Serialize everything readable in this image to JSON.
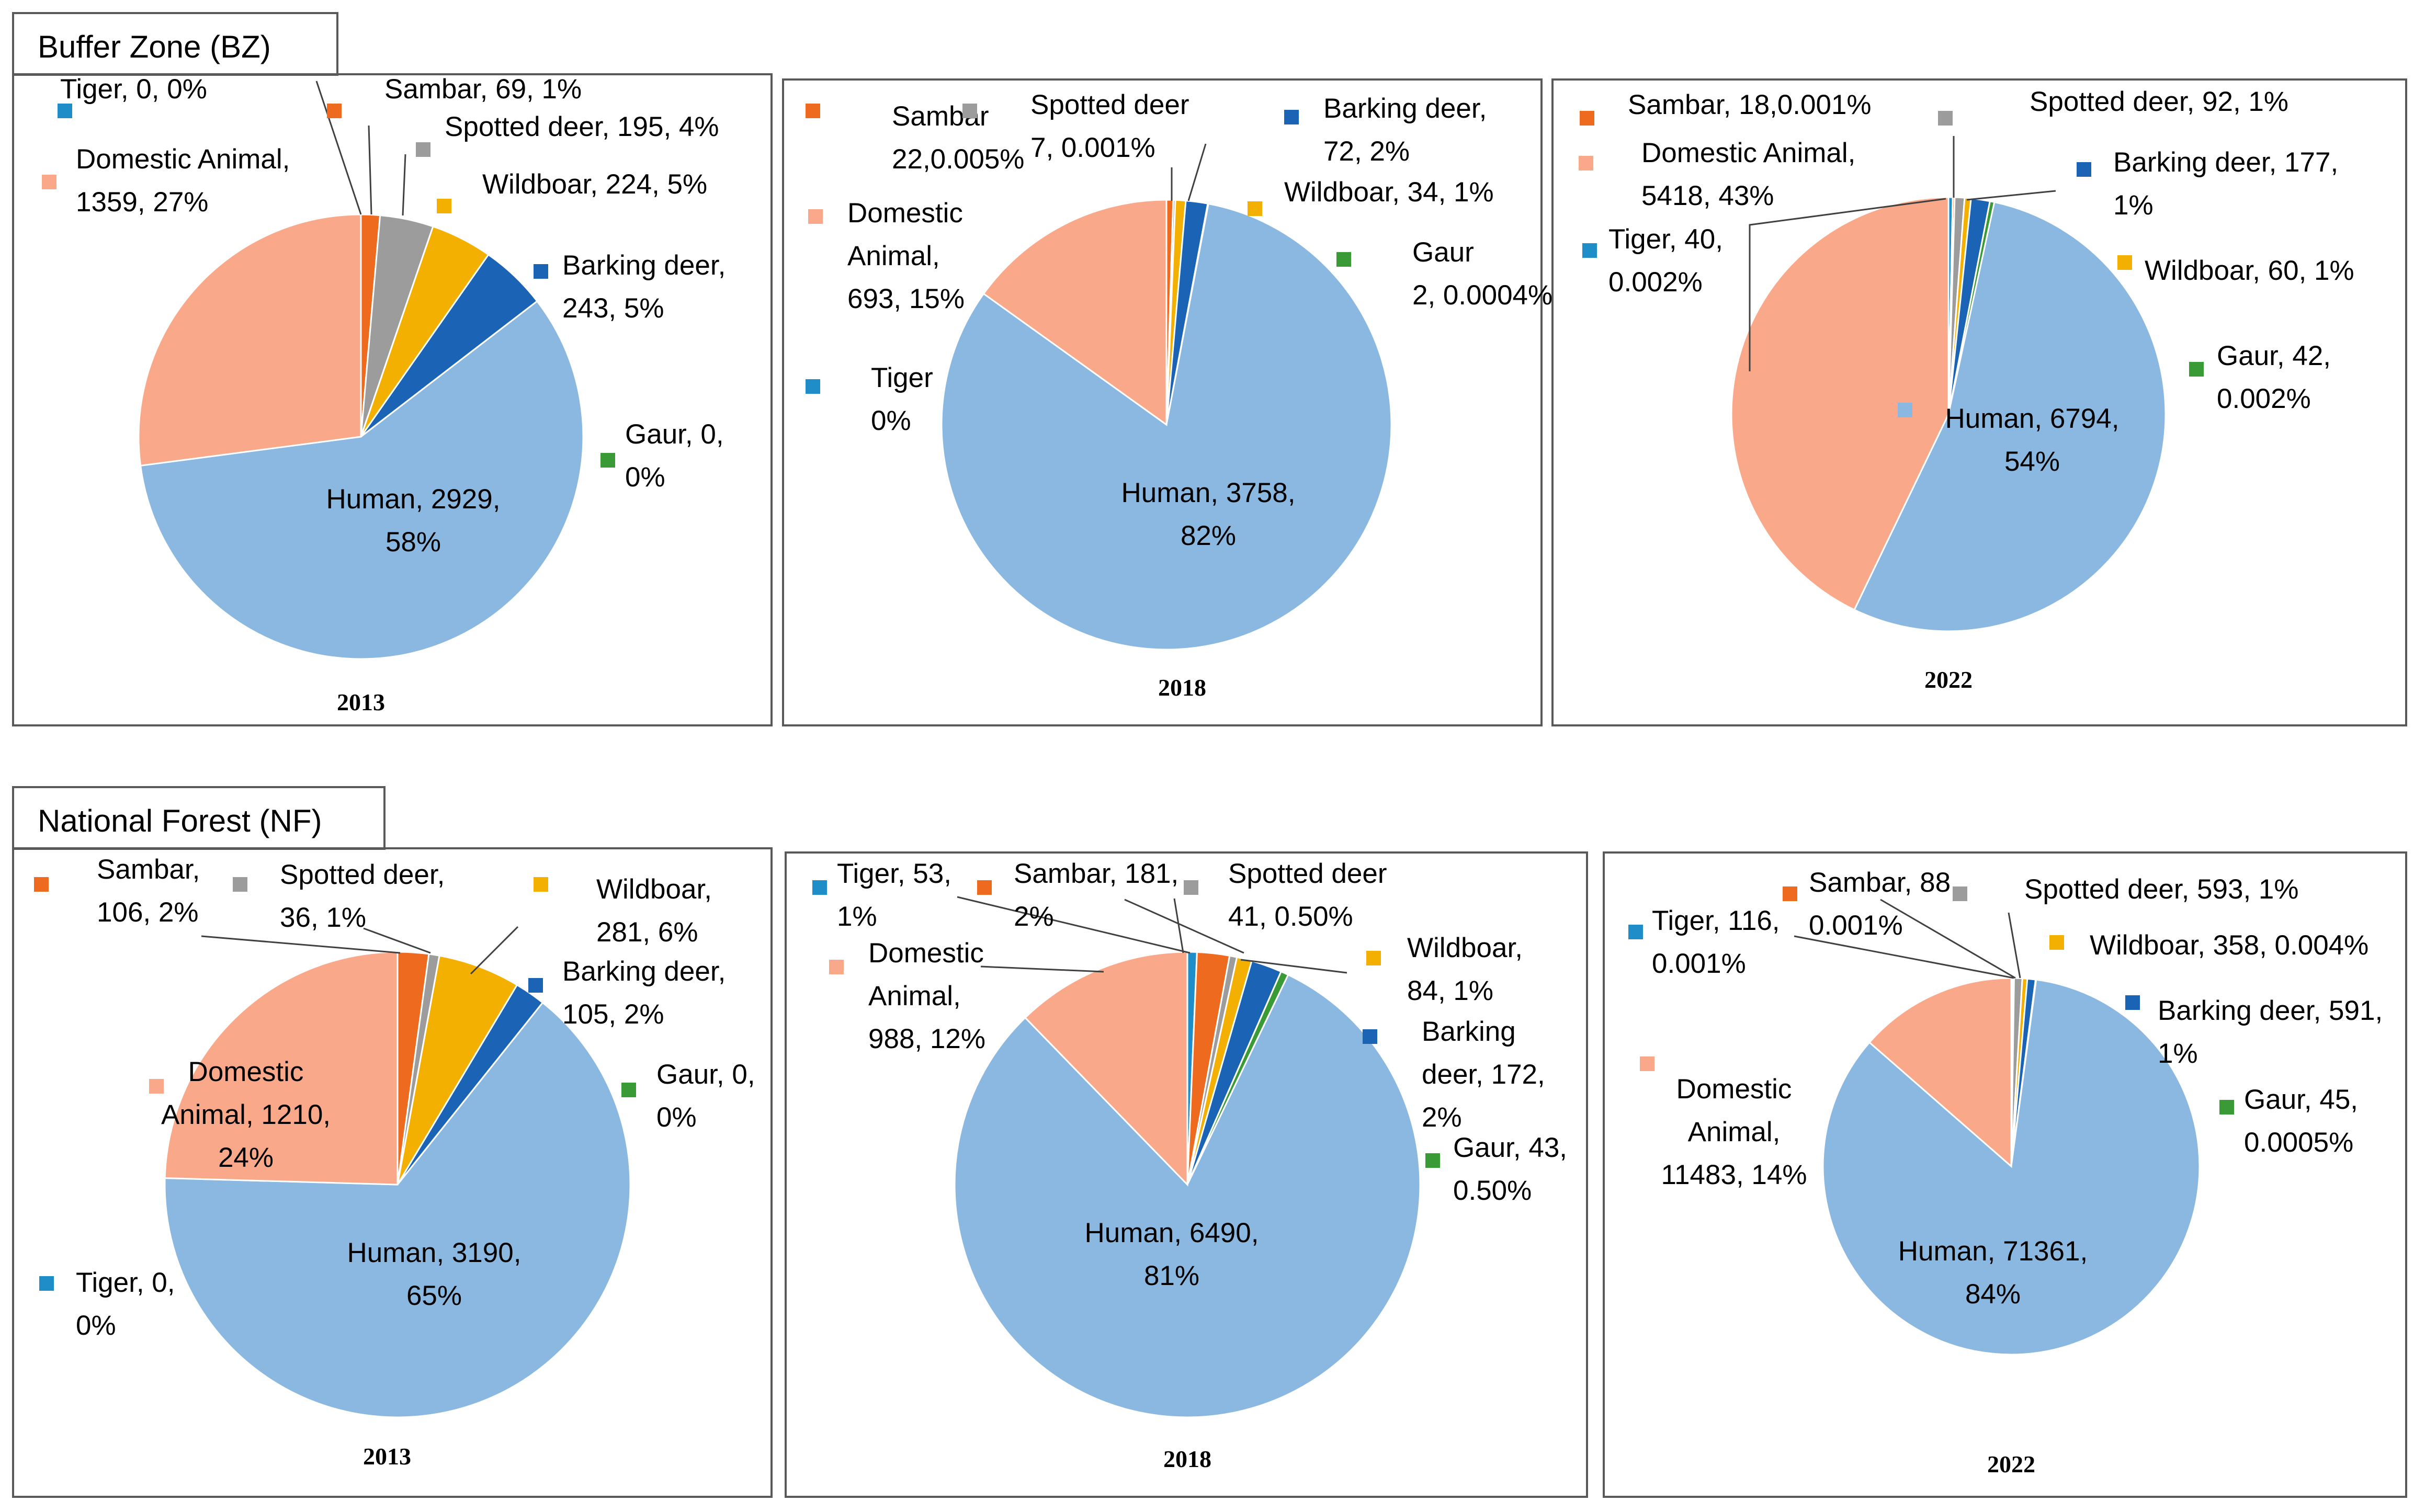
{
  "sections": [
    {
      "title": "Buffer Zone (BZ)"
    },
    {
      "title": "National Forest (NF)"
    }
  ],
  "colors": {
    "Tiger": "#1F8DC8",
    "Sambar": "#ED6A1E",
    "Spotted deer": "#9C9C9C",
    "Wildboar": "#F4B000",
    "Barking deer": "#1A63B5",
    "Gaur": "#3A9B36",
    "Human": "#8BB8E0",
    "Domestic Animal": "#F9A98A",
    "outline": "#FFFFFF",
    "leader": "#404040"
  },
  "chart_data": [
    {
      "type": "pie",
      "section": "Buffer Zone (BZ)",
      "year": "2013",
      "start_angle": 0,
      "slices": [
        {
          "name": "Tiger",
          "value": 0,
          "percent": "0%",
          "label": [
            "Tiger, 0, 0%"
          ]
        },
        {
          "name": "Sambar",
          "value": 69,
          "percent": "1%",
          "label": [
            "Sambar, 69, 1%"
          ]
        },
        {
          "name": "Spotted deer",
          "value": 195,
          "percent": "4%",
          "label": [
            "Spotted deer, 195, 4%"
          ]
        },
        {
          "name": "Wildboar",
          "value": 224,
          "percent": "5%",
          "label": [
            "Wildboar, 224, 5%"
          ]
        },
        {
          "name": "Barking deer",
          "value": 243,
          "percent": "5%",
          "label": [
            "Barking deer,",
            "243, 5%"
          ]
        },
        {
          "name": "Gaur",
          "value": 0,
          "percent": "0%",
          "label": [
            "Gaur, 0,",
            "0%"
          ]
        },
        {
          "name": "Human",
          "value": 2929,
          "percent": "58%",
          "label": [
            "Human, 2929,",
            "58%"
          ]
        },
        {
          "name": "Domestic Animal",
          "value": 1359,
          "percent": "27%",
          "label": [
            "Domestic Animal,",
            "1359, 27%"
          ]
        }
      ]
    },
    {
      "type": "pie",
      "section": "Buffer Zone (BZ)",
      "year": "2018",
      "start_angle": 0,
      "slices": [
        {
          "name": "Tiger",
          "value": 0,
          "percent": "0%",
          "label": [
            "Tiger",
            "0%"
          ]
        },
        {
          "name": "Sambar",
          "value": 22,
          "percent": "0.005%",
          "label": [
            "Sambar",
            "22,0.005%"
          ]
        },
        {
          "name": "Spotted deer",
          "value": 7,
          "percent": "0.001%",
          "label": [
            "Spotted deer",
            "7, 0.001%"
          ]
        },
        {
          "name": "Wildboar",
          "value": 34,
          "percent": "1%",
          "label": [
            "Wildboar, 34, 1%"
          ]
        },
        {
          "name": "Barking deer",
          "value": 72,
          "percent": "2%",
          "label": [
            "Barking deer,",
            "72, 2%"
          ]
        },
        {
          "name": "Gaur",
          "value": 2,
          "percent": "0.0004%",
          "label": [
            "Gaur",
            "2, 0.0004%"
          ]
        },
        {
          "name": "Human",
          "value": 3758,
          "percent": "82%",
          "label": [
            "Human, 3758,",
            "82%"
          ]
        },
        {
          "name": "Domestic Animal",
          "value": 693,
          "percent": "15%",
          "label": [
            "Domestic",
            "Animal,",
            "693, 15%"
          ]
        }
      ]
    },
    {
      "type": "pie",
      "section": "Buffer Zone (BZ)",
      "year": "2022",
      "start_angle": 0,
      "slices": [
        {
          "name": "Tiger",
          "value": 40,
          "percent": "0.002%",
          "label": [
            "Tiger, 40,",
            "0.002%"
          ]
        },
        {
          "name": "Sambar",
          "value": 18,
          "percent": "0.001%",
          "label": [
            "Sambar, 18,0.001%"
          ]
        },
        {
          "name": "Spotted deer",
          "value": 92,
          "percent": "1%",
          "label": [
            "Spotted deer, 92, 1%"
          ]
        },
        {
          "name": "Wildboar",
          "value": 60,
          "percent": "1%",
          "label": [
            "Wildboar, 60, 1%"
          ]
        },
        {
          "name": "Barking deer",
          "value": 177,
          "percent": "1%",
          "label": [
            "Barking deer, 177,",
            "1%"
          ]
        },
        {
          "name": "Gaur",
          "value": 42,
          "percent": "0.002%",
          "label": [
            "Gaur, 42,",
            "0.002%"
          ]
        },
        {
          "name": "Human",
          "value": 6794,
          "percent": "54%",
          "label": [
            "Human, 6794,",
            "54%"
          ]
        },
        {
          "name": "Domestic Animal",
          "value": 5418,
          "percent": "43%",
          "label": [
            "Domestic Animal,",
            "5418, 43%"
          ]
        }
      ]
    },
    {
      "type": "pie",
      "section": "National Forest (NF)",
      "year": "2013",
      "start_angle": 0,
      "slices": [
        {
          "name": "Tiger",
          "value": 0,
          "percent": "0%",
          "label": [
            "Tiger, 0,",
            "0%"
          ]
        },
        {
          "name": "Sambar",
          "value": 106,
          "percent": "2%",
          "label": [
            "Sambar,",
            "106, 2%"
          ]
        },
        {
          "name": "Spotted deer",
          "value": 36,
          "percent": "1%",
          "label": [
            "Spotted deer,",
            "36, 1%"
          ]
        },
        {
          "name": "Wildboar",
          "value": 281,
          "percent": "6%",
          "label": [
            "Wildboar,",
            "281, 6%"
          ]
        },
        {
          "name": "Barking deer",
          "value": 105,
          "percent": "2%",
          "label": [
            "Barking deer,",
            "105, 2%"
          ]
        },
        {
          "name": "Gaur",
          "value": 0,
          "percent": "0%",
          "label": [
            "Gaur, 0,",
            "0%"
          ]
        },
        {
          "name": "Human",
          "value": 3190,
          "percent": "65%",
          "label": [
            "Human, 3190,",
            "65%"
          ]
        },
        {
          "name": "Domestic Animal",
          "value": 1210,
          "percent": "24%",
          "label": [
            "Domestic",
            "Animal, 1210,",
            "24%"
          ]
        }
      ]
    },
    {
      "type": "pie",
      "section": "National Forest (NF)",
      "year": "2018",
      "start_angle": 0,
      "slices": [
        {
          "name": "Tiger",
          "value": 53,
          "percent": "1%",
          "label": [
            "Tiger, 53,",
            "1%"
          ]
        },
        {
          "name": "Sambar",
          "value": 181,
          "percent": "2%",
          "label": [
            "Sambar, 181,",
            "2%"
          ]
        },
        {
          "name": "Spotted deer",
          "value": 41,
          "percent": "0.50%",
          "label": [
            "Spotted deer",
            "41, 0.50%"
          ]
        },
        {
          "name": "Wildboar",
          "value": 84,
          "percent": "1%",
          "label": [
            "Wildboar,",
            "84, 1%"
          ]
        },
        {
          "name": "Barking deer",
          "value": 172,
          "percent": "2%",
          "label": [
            "Barking",
            "deer, 172,",
            "2%"
          ]
        },
        {
          "name": "Gaur",
          "value": 43,
          "percent": "0.50%",
          "label": [
            "Gaur, 43,",
            "0.50%"
          ]
        },
        {
          "name": "Human",
          "value": 6490,
          "percent": "81%",
          "label": [
            "Human, 6490,",
            "81%"
          ]
        },
        {
          "name": "Domestic Animal",
          "value": 988,
          "percent": "12%",
          "label": [
            "Domestic",
            "Animal,",
            "988, 12%"
          ]
        }
      ]
    },
    {
      "type": "pie",
      "section": "National Forest (NF)",
      "year": "2022",
      "start_angle": 0,
      "slices": [
        {
          "name": "Tiger",
          "value": 116,
          "percent": "0.001%",
          "label": [
            "Tiger, 116,",
            "0.001%"
          ]
        },
        {
          "name": "Sambar",
          "value": 88,
          "percent": "0.001%",
          "label": [
            "Sambar, 88,",
            "0.001%"
          ]
        },
        {
          "name": "Spotted deer",
          "value": 593,
          "percent": "1%",
          "label": [
            "Spotted deer, 593, 1%"
          ]
        },
        {
          "name": "Wildboar",
          "value": 358,
          "percent": "0.004%",
          "label": [
            "Wildboar, 358, 0.004%"
          ]
        },
        {
          "name": "Barking deer",
          "value": 591,
          "percent": "1%",
          "label": [
            "Barking deer, 591,",
            "1%"
          ]
        },
        {
          "name": "Gaur",
          "value": 45,
          "percent": "0.0005%",
          "label": [
            "Gaur, 45,",
            "0.0005%"
          ]
        },
        {
          "name": "Human",
          "value": 71361,
          "percent": "84%",
          "label": [
            "Human, 71361,",
            "84%"
          ]
        },
        {
          "name": "Domestic Animal",
          "value": 11483,
          "percent": "14%",
          "label": [
            "Domestic",
            "Animal,",
            "11483, 14%"
          ]
        }
      ]
    }
  ]
}
